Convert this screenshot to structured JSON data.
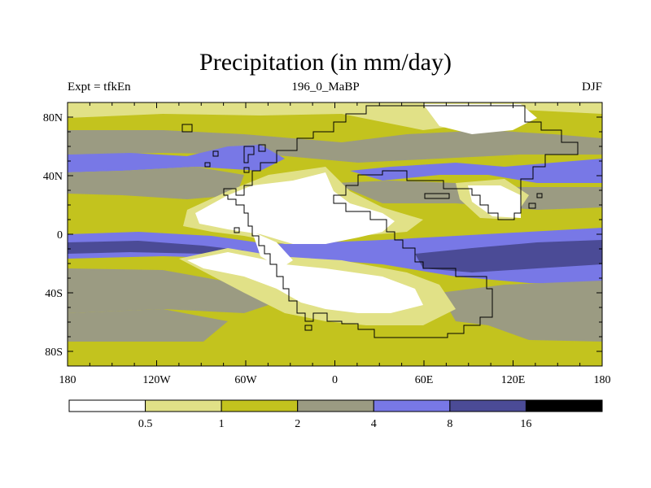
{
  "map": {
    "title": "Precipitation (in mm/day)",
    "experiment": "Expt = tfkEn",
    "period": "196_0_MaBP",
    "season": "DJF",
    "lat_ticks": [
      {
        "lat": 80,
        "label": "80N"
      },
      {
        "lat": 40,
        "label": "40N"
      },
      {
        "lat": 0,
        "label": "0"
      },
      {
        "lat": -40,
        "label": "40S"
      },
      {
        "lat": -80,
        "label": "80S"
      }
    ],
    "lon_ticks": [
      {
        "lon": -180,
        "label": "180"
      },
      {
        "lon": -120,
        "label": "120W"
      },
      {
        "lon": -60,
        "label": "60W"
      },
      {
        "lon": 0,
        "label": "0"
      },
      {
        "lon": 60,
        "label": "60E"
      },
      {
        "lon": 120,
        "label": "120E"
      },
      {
        "lon": 180,
        "label": "180"
      }
    ],
    "lon_range": [
      -180,
      180
    ],
    "lat_range": [
      -90,
      90
    ]
  },
  "legend": {
    "levels": [
      "0.5",
      "1",
      "2",
      "4",
      "8",
      "16"
    ],
    "colors": [
      "#ffffff",
      "#e1e187",
      "#c3c31e",
      "#9b9b82",
      "#7878e6",
      "#4b4b96",
      "#000000"
    ]
  }
}
